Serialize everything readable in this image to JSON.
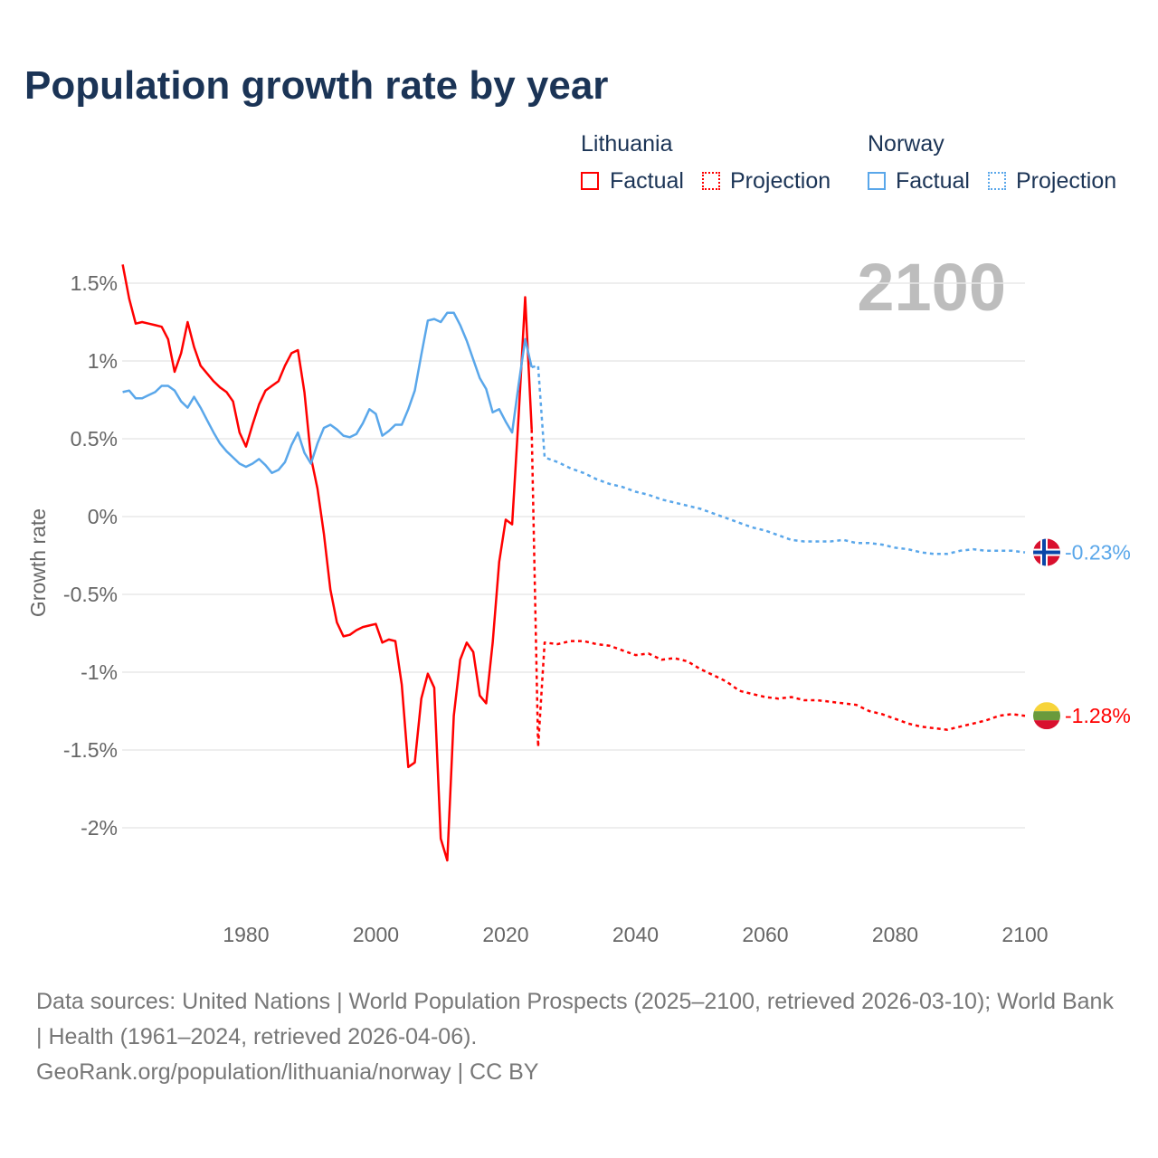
{
  "title": "Population growth rate by year",
  "legend": {
    "groups": [
      {
        "name": "Lithuania",
        "factual": "Factual",
        "projection": "Projection",
        "color": "#ff0000"
      },
      {
        "name": "Norway",
        "factual": "Factual",
        "projection": "Projection",
        "color": "#5aa7ea"
      }
    ]
  },
  "year_display": "2100",
  "footer": {
    "line1": "Data sources: United Nations | World Population Prospects (2025–2100, retrieved 2026-03-10); World Bank | Health (1961–2024, retrieved 2026-04-06).",
    "line2": "GeoRank.org/population/lithuania/norway | CC BY"
  },
  "chart_data": {
    "type": "line",
    "title": "Population growth rate by year",
    "ylabel": "Growth rate",
    "xlabel": "",
    "xlim": [
      1961,
      2100
    ],
    "ylim": [
      -2.5,
      1.75
    ],
    "yticks": [
      1.5,
      1,
      0.5,
      0,
      -0.5,
      -1,
      -1.5,
      -2
    ],
    "ytick_labels": [
      "1.5%",
      "1%",
      "0.5%",
      "0%",
      "-0.5%",
      "-1%",
      "-1.5%",
      "-2%"
    ],
    "xticks": [
      1980,
      2000,
      2020,
      2040,
      2060,
      2080,
      2100
    ],
    "xtick_labels": [
      "1980",
      "2000",
      "2020",
      "2040",
      "2060",
      "2080",
      "2100"
    ],
    "grid": true,
    "series": [
      {
        "name": "Lithuania",
        "kind": "Factual",
        "color": "#ff0000",
        "dashed": false,
        "x": [
          1961,
          1962,
          1963,
          1964,
          1965,
          1966,
          1967,
          1968,
          1969,
          1970,
          1971,
          1972,
          1973,
          1974,
          1975,
          1976,
          1977,
          1978,
          1979,
          1980,
          1981,
          1982,
          1983,
          1984,
          1985,
          1986,
          1987,
          1988,
          1989,
          1990,
          1991,
          1992,
          1993,
          1994,
          1995,
          1996,
          1997,
          1998,
          1999,
          2000,
          2001,
          2002,
          2003,
          2004,
          2005,
          2006,
          2007,
          2008,
          2009,
          2010,
          2011,
          2012,
          2013,
          2014,
          2015,
          2016,
          2017,
          2018,
          2019,
          2020,
          2021,
          2022,
          2023,
          2024
        ],
        "y": [
          1.62,
          1.4,
          1.24,
          1.25,
          1.24,
          1.23,
          1.22,
          1.14,
          0.93,
          1.05,
          1.25,
          1.09,
          0.97,
          0.92,
          0.87,
          0.83,
          0.8,
          0.74,
          0.54,
          0.45,
          0.59,
          0.72,
          0.81,
          0.84,
          0.87,
          0.97,
          1.05,
          1.07,
          0.8,
          0.38,
          0.18,
          -0.11,
          -0.47,
          -0.68,
          -0.77,
          -0.76,
          -0.73,
          -0.71,
          -0.7,
          -0.69,
          -0.81,
          -0.79,
          -0.8,
          -1.08,
          -1.61,
          -1.58,
          -1.17,
          -1.01,
          -1.1,
          -2.07,
          -2.21,
          -1.28,
          -0.92,
          -0.81,
          -0.87,
          -1.15,
          -1.2,
          -0.81,
          -0.29,
          -0.02,
          -0.05,
          0.65,
          1.41,
          0.56
        ]
      },
      {
        "name": "Lithuania",
        "kind": "Projection",
        "color": "#ff0000",
        "dashed": true,
        "x": [
          2024,
          2025,
          2026,
          2028,
          2030,
          2032,
          2034,
          2036,
          2038,
          2040,
          2042,
          2044,
          2046,
          2048,
          2050,
          2052,
          2054,
          2056,
          2058,
          2060,
          2062,
          2064,
          2066,
          2068,
          2070,
          2072,
          2074,
          2076,
          2078,
          2080,
          2082,
          2084,
          2086,
          2088,
          2090,
          2092,
          2094,
          2096,
          2098,
          2100
        ],
        "y": [
          0.56,
          -1.48,
          -0.81,
          -0.82,
          -0.8,
          -0.8,
          -0.82,
          -0.83,
          -0.86,
          -0.89,
          -0.88,
          -0.92,
          -0.91,
          -0.93,
          -0.98,
          -1.02,
          -1.06,
          -1.12,
          -1.14,
          -1.16,
          -1.17,
          -1.16,
          -1.18,
          -1.18,
          -1.19,
          -1.2,
          -1.21,
          -1.25,
          -1.27,
          -1.3,
          -1.33,
          -1.35,
          -1.36,
          -1.37,
          -1.35,
          -1.33,
          -1.31,
          -1.28,
          -1.27,
          -1.28
        ]
      },
      {
        "name": "Norway",
        "kind": "Factual",
        "color": "#5aa7ea",
        "dashed": false,
        "x": [
          1961,
          1962,
          1963,
          1964,
          1965,
          1966,
          1967,
          1968,
          1969,
          1970,
          1971,
          1972,
          1973,
          1974,
          1975,
          1976,
          1977,
          1978,
          1979,
          1980,
          1981,
          1982,
          1983,
          1984,
          1985,
          1986,
          1987,
          1988,
          1989,
          1990,
          1991,
          1992,
          1993,
          1994,
          1995,
          1996,
          1997,
          1998,
          1999,
          2000,
          2001,
          2002,
          2003,
          2004,
          2005,
          2006,
          2007,
          2008,
          2009,
          2010,
          2011,
          2012,
          2013,
          2014,
          2015,
          2016,
          2017,
          2018,
          2019,
          2020,
          2021,
          2022,
          2023,
          2024
        ],
        "y": [
          0.8,
          0.81,
          0.76,
          0.76,
          0.78,
          0.8,
          0.84,
          0.84,
          0.81,
          0.74,
          0.7,
          0.77,
          0.7,
          0.62,
          0.54,
          0.47,
          0.42,
          0.38,
          0.34,
          0.32,
          0.34,
          0.37,
          0.33,
          0.28,
          0.3,
          0.35,
          0.46,
          0.54,
          0.41,
          0.34,
          0.47,
          0.57,
          0.59,
          0.56,
          0.52,
          0.51,
          0.53,
          0.6,
          0.69,
          0.66,
          0.52,
          0.55,
          0.59,
          0.59,
          0.69,
          0.81,
          1.04,
          1.26,
          1.27,
          1.25,
          1.31,
          1.31,
          1.23,
          1.13,
          1.01,
          0.89,
          0.82,
          0.67,
          0.69,
          0.61,
          0.54,
          0.85,
          1.14,
          0.96
        ]
      },
      {
        "name": "Norway",
        "kind": "Projection",
        "color": "#5aa7ea",
        "dashed": true,
        "x": [
          2024,
          2025,
          2026,
          2028,
          2030,
          2032,
          2034,
          2036,
          2038,
          2040,
          2042,
          2044,
          2046,
          2048,
          2050,
          2052,
          2054,
          2056,
          2058,
          2060,
          2062,
          2064,
          2066,
          2068,
          2070,
          2072,
          2074,
          2076,
          2078,
          2080,
          2082,
          2084,
          2086,
          2088,
          2090,
          2092,
          2094,
          2096,
          2098,
          2100
        ],
        "y": [
          0.96,
          0.97,
          0.38,
          0.35,
          0.31,
          0.28,
          0.24,
          0.21,
          0.19,
          0.16,
          0.14,
          0.11,
          0.09,
          0.07,
          0.05,
          0.02,
          -0.01,
          -0.04,
          -0.07,
          -0.09,
          -0.12,
          -0.15,
          -0.16,
          -0.16,
          -0.16,
          -0.15,
          -0.17,
          -0.17,
          -0.18,
          -0.2,
          -0.21,
          -0.23,
          -0.24,
          -0.24,
          -0.22,
          -0.21,
          -0.22,
          -0.22,
          -0.22,
          -0.23
        ]
      }
    ],
    "end_labels": [
      {
        "name": "Norway",
        "value": -0.23,
        "label": "-0.23%",
        "color": "#5aa7ea"
      },
      {
        "name": "Lithuania",
        "value": -1.28,
        "label": "-1.28%",
        "color": "#ff0000"
      }
    ]
  }
}
